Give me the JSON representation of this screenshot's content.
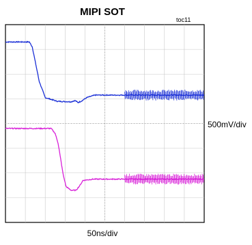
{
  "title": "MIPI SOT",
  "figure_tag": "toc11",
  "chart_data": {
    "type": "line",
    "title": "MIPI SOT",
    "xlabel": "50ns/div",
    "ylabel": "500mV/div",
    "x_divisions": 10,
    "y_divisions": 8,
    "xlim": [
      0,
      10
    ],
    "ylim": [
      0,
      8
    ],
    "grid": true,
    "series": [
      {
        "color": "#1a2fd6",
        "x": [
          0,
          1.2,
          1.35,
          1.45,
          1.7,
          2.0,
          2.6,
          3.3,
          3.5,
          3.65,
          3.8,
          4.1,
          4.5,
          6.0,
          10
        ],
        "y": [
          7.3,
          7.3,
          7.1,
          6.7,
          5.7,
          5.05,
          4.9,
          4.88,
          4.93,
          4.85,
          4.9,
          5.05,
          5.15,
          5.15,
          5.15
        ],
        "noise_after_x": 6.0
      },
      {
        "color": "#d81fd8",
        "x": [
          0,
          2.3,
          2.5,
          2.65,
          2.9,
          3.05,
          3.3,
          3.55,
          3.75,
          3.9,
          4.4,
          6.0,
          10
        ],
        "y": [
          3.8,
          3.8,
          3.6,
          3.2,
          1.95,
          1.45,
          1.3,
          1.3,
          1.5,
          1.7,
          1.75,
          1.75,
          1.75
        ],
        "noise_after_x": 6.0
      }
    ]
  }
}
